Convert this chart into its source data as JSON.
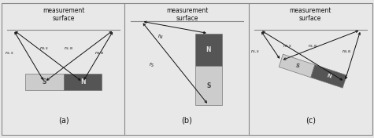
{
  "bg_color": "#e8e8e8",
  "magnet_light": "#cccccc",
  "magnet_dark": "#555555",
  "surface_line_color": "#888888",
  "arrow_color": "#111111",
  "text_color": "#111111",
  "label_a": "(a)",
  "label_b": "(b)",
  "label_c": "(c)",
  "measurement_surface": "measurement\nsurface"
}
